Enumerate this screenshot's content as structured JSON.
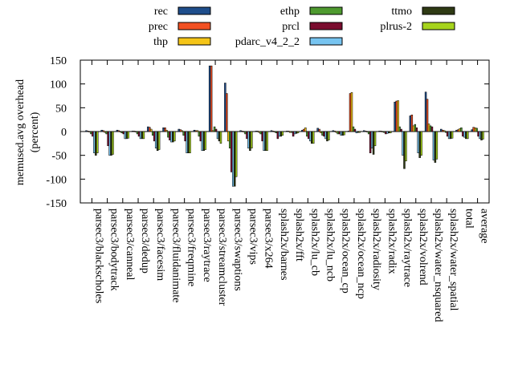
{
  "chart_data": {
    "type": "bar",
    "ylabel": "memused.avg overhead\n(percent)",
    "ylim": [
      -150,
      150
    ],
    "yticks": [
      -150,
      -100,
      -50,
      0,
      50,
      100,
      150
    ],
    "grid": false,
    "legend_position": "top",
    "categories": [
      "parsec3/blackscholes",
      "parsec3/bodytrack",
      "parsec3/canneal",
      "parsec3/dedup",
      "parsec3/facesim",
      "parsec3/fluidanimate",
      "parsec3/freqmine",
      "parsec3/raytrace",
      "parsec3/streamcluster",
      "parsec3/swaptions",
      "parsec3/vips",
      "parsec3/x264",
      "splash2x/barnes",
      "splash2x/fft",
      "splash2x/lu_cb",
      "splash2x/lu_ncb",
      "splash2x/ocean_cp",
      "splash2x/ocean_ncp",
      "splash2x/radiosity",
      "splash2x/radix",
      "splash2x/raytrace",
      "splash2x/volrend",
      "splash2x/water_nsquared",
      "splash2x/water_spatial",
      "total",
      "average"
    ],
    "series": [
      {
        "name": "rec",
        "color": "#1f4e8c",
        "values": [
          2,
          3,
          3,
          1,
          10,
          8,
          5,
          3,
          138,
          102,
          2,
          1,
          2,
          1,
          3,
          7,
          2,
          1,
          2,
          1,
          62,
          33,
          83,
          5,
          3,
          4
        ]
      },
      {
        "name": "prec",
        "color": "#f25022",
        "values": [
          1,
          2,
          2,
          1,
          9,
          8,
          4,
          2,
          138,
          80,
          1,
          1,
          1,
          1,
          5,
          5,
          1,
          80,
          1,
          1,
          64,
          35,
          68,
          3,
          4,
          9
        ]
      },
      {
        "name": "thp",
        "color": "#f5c518",
        "values": [
          -1,
          -2,
          -1,
          -1,
          5,
          3,
          2,
          2,
          2,
          -20,
          -1,
          -2,
          -1,
          -2,
          8,
          -3,
          -2,
          82,
          -1,
          -1,
          65,
          12,
          16,
          2,
          6,
          8
        ]
      },
      {
        "name": "ethp",
        "color": "#4e9a2f",
        "values": [
          -5,
          -5,
          -3,
          -5,
          -8,
          -12,
          -8,
          -10,
          10,
          -35,
          -5,
          -5,
          -3,
          -2,
          -10,
          -8,
          -5,
          10,
          -5,
          -2,
          10,
          15,
          12,
          -2,
          8,
          7
        ]
      },
      {
        "name": "prcl",
        "color": "#7a0c2e",
        "values": [
          -10,
          -30,
          -5,
          -10,
          -20,
          -18,
          -20,
          -20,
          5,
          -85,
          -15,
          -20,
          -15,
          -10,
          -15,
          -10,
          -5,
          5,
          -45,
          -5,
          5,
          8,
          10,
          -10,
          -10,
          -10
        ]
      },
      {
        "name": "pdarc_v4_2_2",
        "color": "#77c4f0",
        "values": [
          -45,
          -50,
          -15,
          -15,
          -35,
          -22,
          -45,
          -40,
          -15,
          -115,
          -35,
          -40,
          -10,
          -5,
          -20,
          -15,
          -8,
          -3,
          -35,
          -4,
          -50,
          -45,
          -60,
          -15,
          -12,
          -15
        ]
      },
      {
        "name": "ttmo",
        "color": "#2f3a14",
        "values": [
          -50,
          -50,
          -15,
          -15,
          -40,
          -22,
          -45,
          -40,
          -20,
          -115,
          -40,
          -40,
          -10,
          -4,
          -25,
          -20,
          -8,
          -2,
          -48,
          -3,
          -78,
          -55,
          -65,
          -15,
          -15,
          -18
        ]
      },
      {
        "name": "plrus-2",
        "color": "#a6d41c",
        "values": [
          -45,
          -48,
          -14,
          -15,
          -38,
          -20,
          -45,
          -38,
          -25,
          -95,
          -35,
          -40,
          -8,
          -3,
          -25,
          -18,
          -7,
          -2,
          -30,
          -3,
          -62,
          -50,
          -58,
          -14,
          -15,
          -16
        ]
      }
    ]
  }
}
